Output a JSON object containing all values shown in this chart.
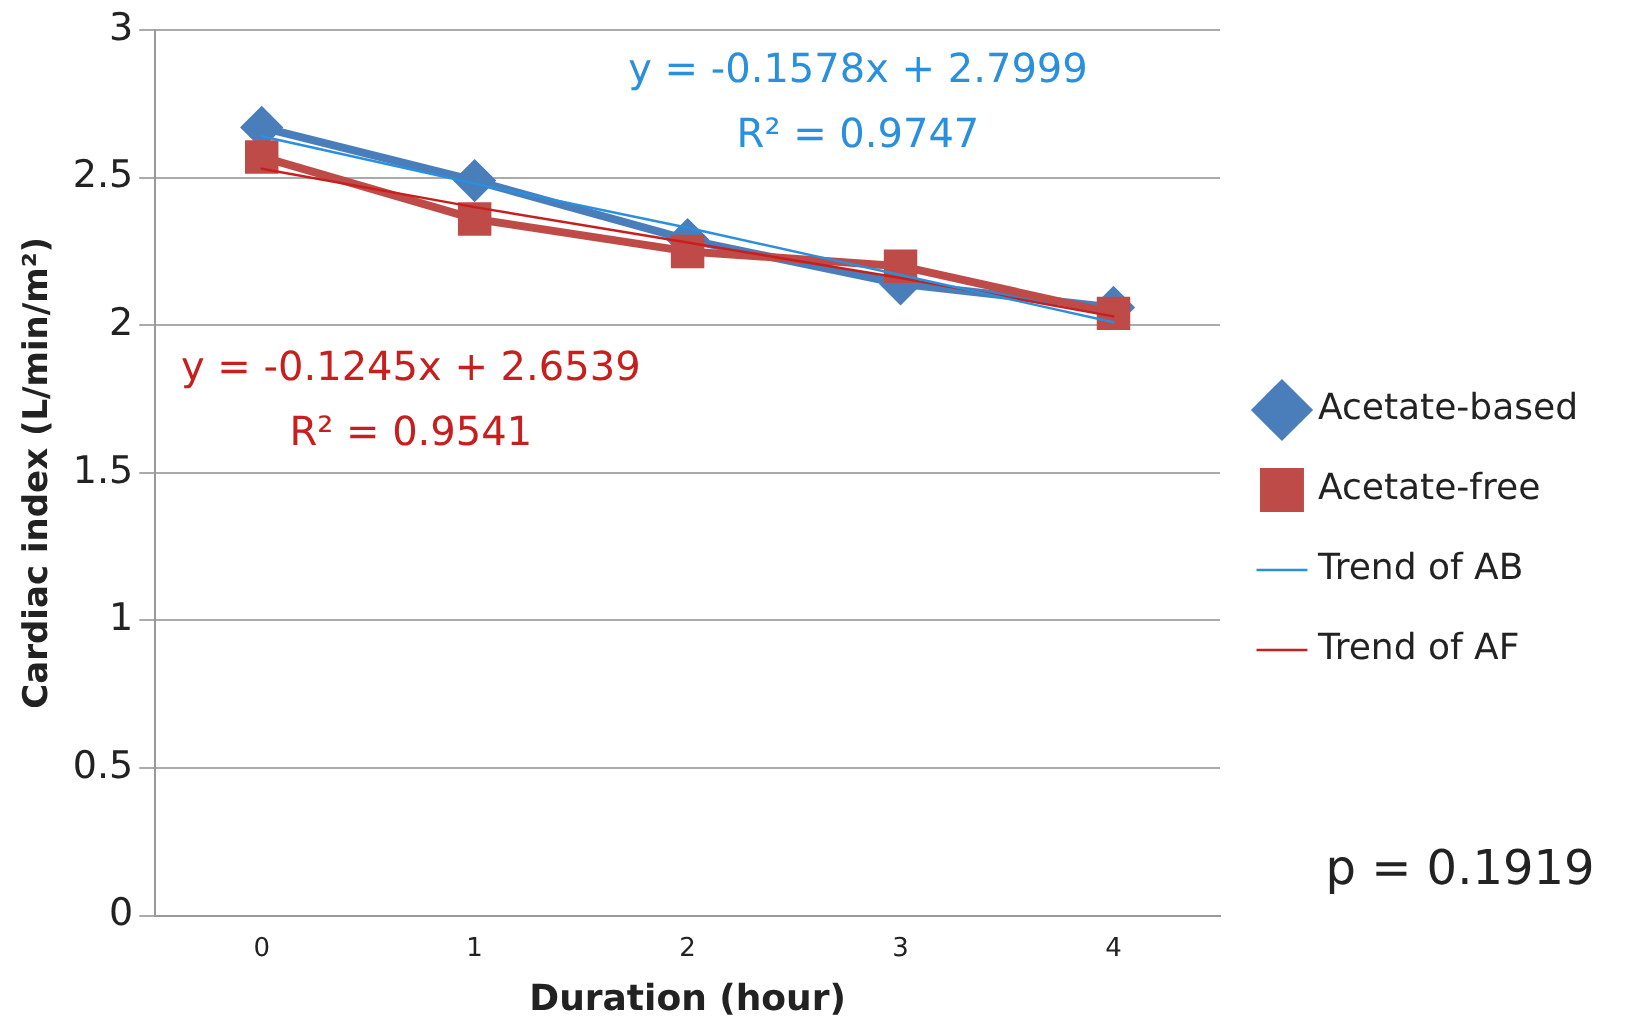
{
  "chart_data": {
    "type": "line",
    "xlabel": "Duration (hour)",
    "ylabel": "Cardiac index (L/min/m²)",
    "categories": [
      "0",
      "1",
      "2",
      "3",
      "4"
    ],
    "series": [
      {
        "name": "Acetate-based",
        "color": "#4a7ebb",
        "marker": "diamond",
        "values": [
          2.67,
          2.49,
          2.29,
          2.14,
          2.06
        ]
      },
      {
        "name": "Acetate-free",
        "color": "#be4b48",
        "marker": "square",
        "values": [
          2.57,
          2.36,
          2.25,
          2.2,
          2.04
        ]
      },
      {
        "name": "Trend of AB",
        "color": "#2a8fdc",
        "marker": "none",
        "values": [
          2.64,
          2.48,
          2.33,
          2.17,
          2.01
        ]
      },
      {
        "name": "Trend of AF",
        "color": "#c81e1e",
        "marker": "none",
        "values": [
          2.53,
          2.4,
          2.28,
          2.16,
          2.03
        ]
      }
    ],
    "ylim": [
      0,
      3
    ],
    "yticks": [
      0,
      0.5,
      1,
      1.5,
      2,
      2.5,
      3
    ],
    "grid": "y",
    "legend": "right",
    "annotations": [
      "y = -0.1578x + 2.7999",
      "R² = 0.9747",
      "y = -0.1245x + 2.6539",
      "R² = 0.9541",
      "p = 0.1919"
    ]
  }
}
